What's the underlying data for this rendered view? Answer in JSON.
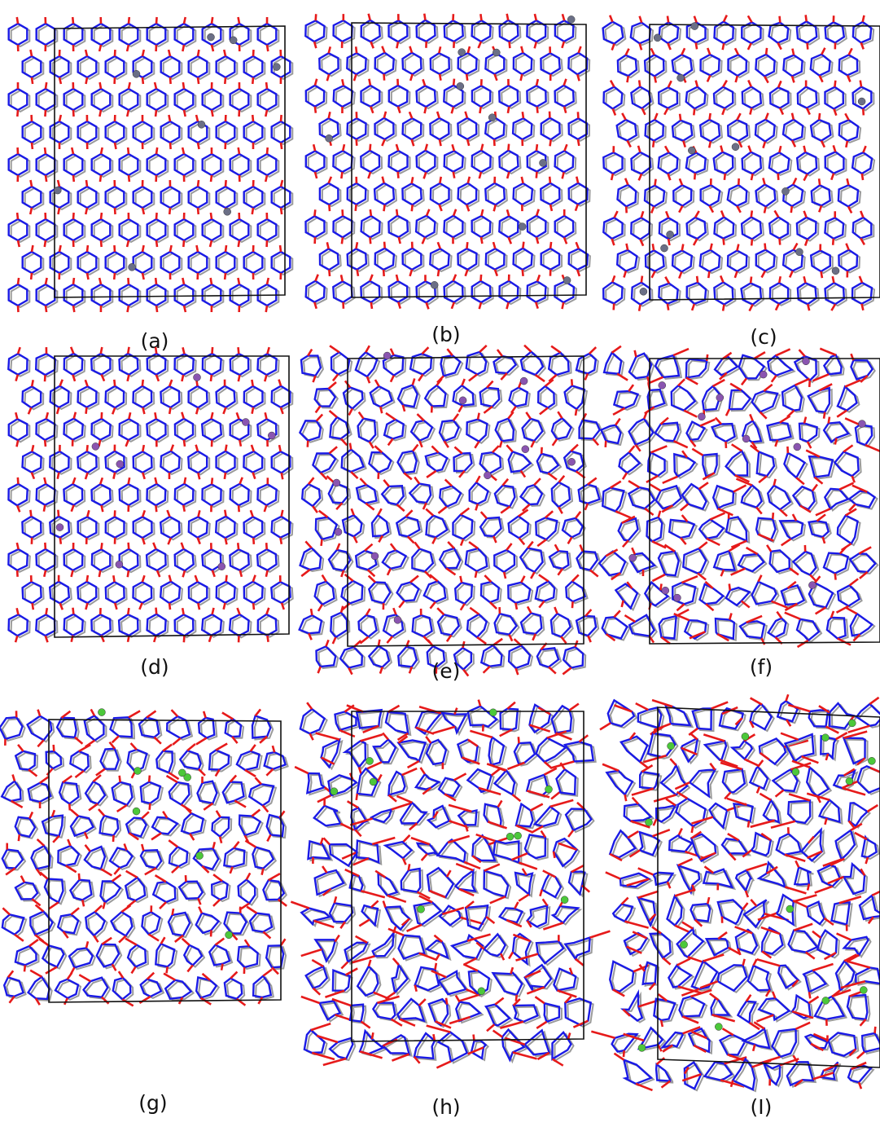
{
  "panels": [
    {
      "label": "(a)"
    },
    {
      "label": "(b)"
    },
    {
      "label": "(c)"
    },
    {
      "label": "(d)"
    },
    {
      "label": "(e)"
    },
    {
      "label": "(f)"
    },
    {
      "label": "(g)"
    },
    {
      "label": "(h)"
    },
    {
      "label": "(I)"
    }
  ]
}
